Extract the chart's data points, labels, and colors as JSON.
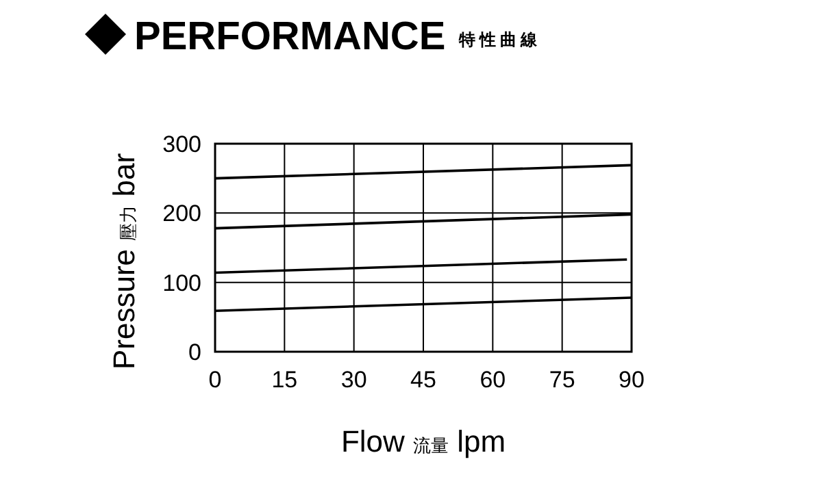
{
  "chart_data": {
    "type": "line",
    "title": "PERFORMANCE",
    "subtitle": "特性曲線",
    "xlabel": "Flow 流量 lpm",
    "ylabel": "Pressure 壓力 bar",
    "series": [
      {
        "color": "#000000",
        "x": [
          0,
          90
        ],
        "values": [
          250,
          269
        ]
      },
      {
        "color": "#000000",
        "x": [
          0,
          90
        ],
        "values": [
          178,
          198
        ]
      },
      {
        "color": "#000000",
        "x": [
          0,
          89
        ],
        "values": [
          114,
          133
        ]
      },
      {
        "color": "#000000",
        "x": [
          0,
          90
        ],
        "values": [
          59,
          78
        ]
      }
    ],
    "xlim": [
      0,
      90
    ],
    "xticks": [
      0,
      15,
      30,
      45,
      60,
      75,
      90
    ],
    "ylim": [
      0,
      300
    ],
    "yticks": [
      0,
      100,
      200,
      300
    ],
    "grid": true,
    "marker": "none",
    "line_style": "solid"
  }
}
